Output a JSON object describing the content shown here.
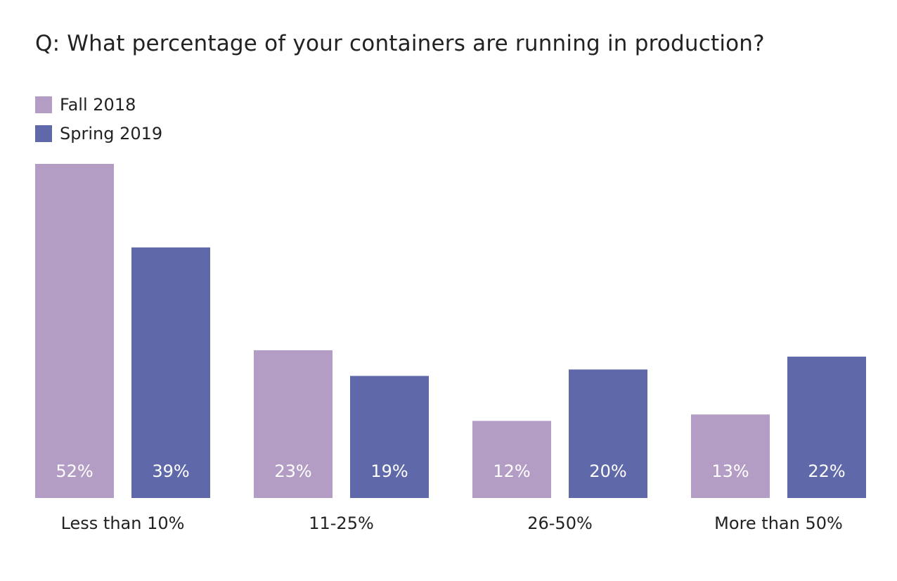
{
  "chart_data": {
    "type": "bar",
    "title": "Q: What percentage of your containers are running in production?",
    "categories": [
      "Less than 10%",
      "11-25%",
      "26-50%",
      "More than 50%"
    ],
    "series": [
      {
        "name": "Fall 2018",
        "color": "#b39dc5",
        "values": [
          52,
          23,
          12,
          13
        ],
        "labels": [
          "52%",
          "23%",
          "12%",
          "13%"
        ]
      },
      {
        "name": "Spring 2019",
        "color": "#5f69a9",
        "values": [
          39,
          19,
          20,
          22
        ],
        "labels": [
          "39%",
          "19%",
          "20%",
          "22%"
        ]
      }
    ],
    "xlabel": "",
    "ylabel": "",
    "ylim": [
      0,
      52
    ],
    "grid": false,
    "legend_position": "top-left",
    "data_label_color": "#ffffff"
  }
}
